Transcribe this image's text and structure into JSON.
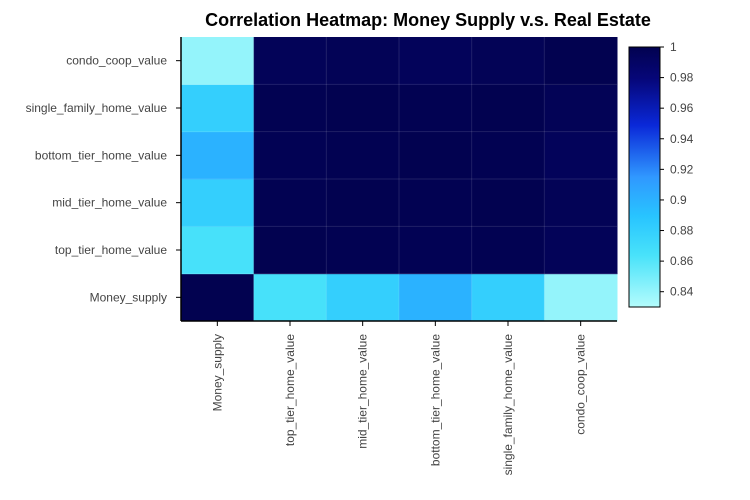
{
  "chart_data": {
    "type": "heatmap",
    "title": "Correlation Heatmap: Money Supply v.s. Real Estate",
    "x_categories": [
      "Money_supply",
      "top_tier_home_value",
      "mid_tier_home_value",
      "bottom_tier_home_value",
      "single_family_home_value",
      "condo_coop_value"
    ],
    "y_categories": [
      "Money_supply",
      "top_tier_home_value",
      "mid_tier_home_value",
      "bottom_tier_home_value",
      "single_family_home_value",
      "condo_coop_value"
    ],
    "values": [
      [
        1.0,
        0.865,
        0.88,
        0.9,
        0.88,
        0.84
      ],
      [
        0.865,
        1.0,
        0.999,
        0.998,
        0.999,
        0.996
      ],
      [
        0.88,
        0.999,
        1.0,
        0.999,
        1.0,
        0.997
      ],
      [
        0.9,
        0.998,
        0.999,
        1.0,
        0.999,
        0.995
      ],
      [
        0.88,
        0.999,
        1.0,
        0.999,
        1.0,
        0.997
      ],
      [
        0.84,
        0.996,
        0.997,
        0.995,
        0.997,
        1.0
      ]
    ],
    "colorscale": "blues",
    "zrange": [
      0.83,
      1.0
    ],
    "colorbar_ticks": [
      "0.84",
      "0.86",
      "0.88",
      "0.9",
      "0.92",
      "0.94",
      "0.96",
      "0.98",
      "1"
    ],
    "grid": true,
    "legend": "colorbar-right"
  }
}
